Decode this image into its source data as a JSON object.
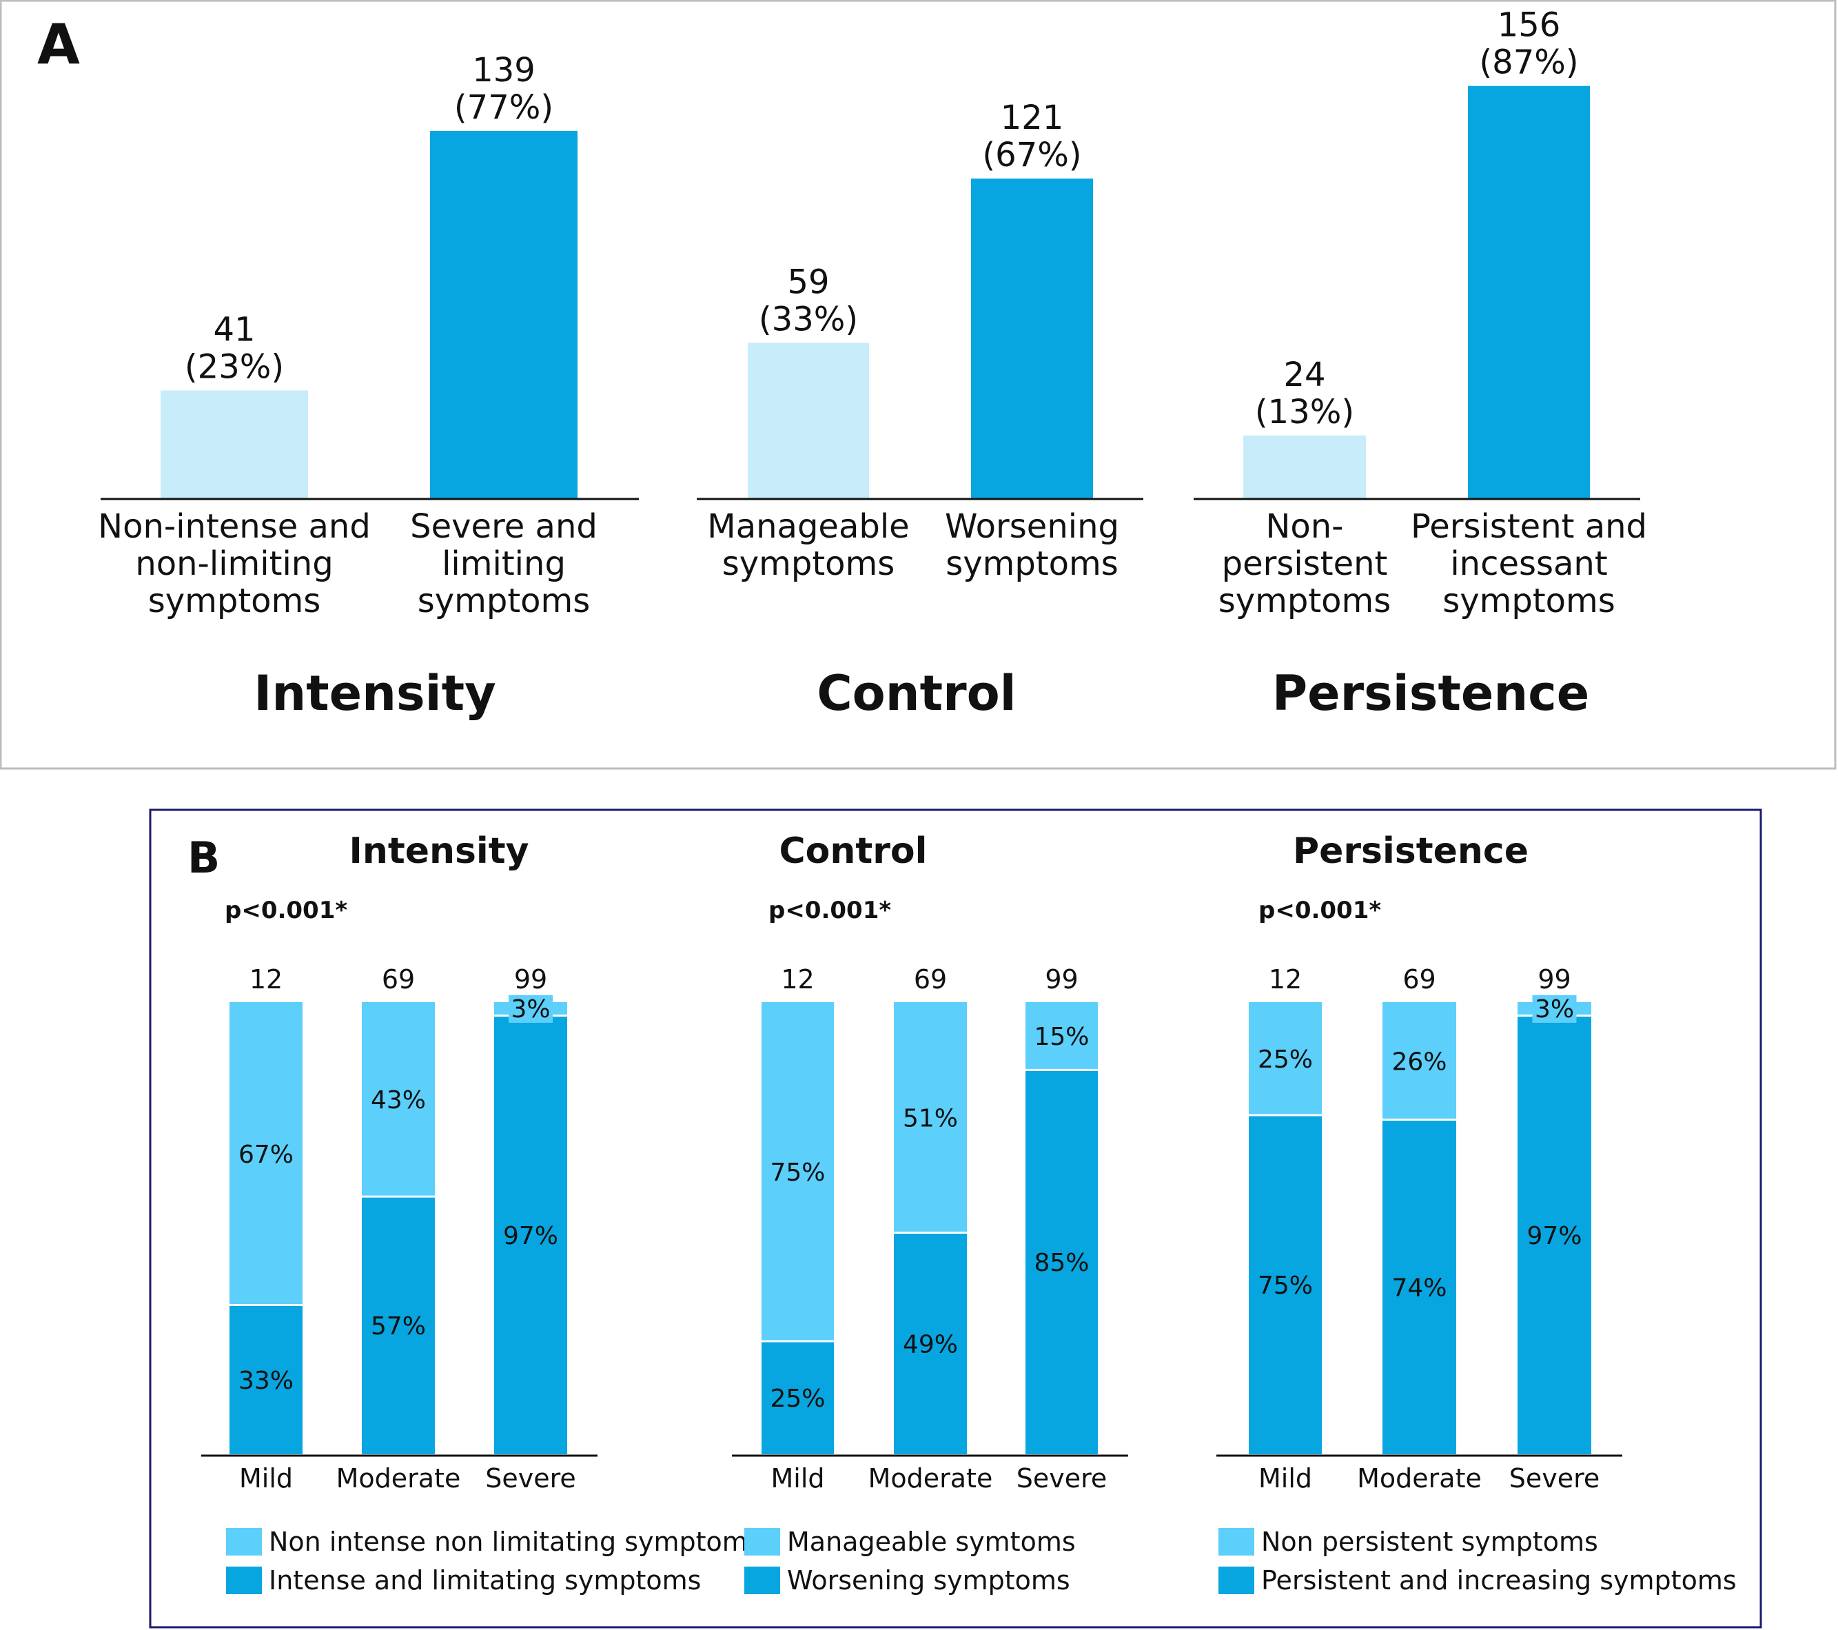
{
  "colors": {
    "panelA_light": "#c9ecfa",
    "panelA_dark": "#07a6e0",
    "panelB_light": "#5ccffb",
    "panelB_dark": "#07a6e0",
    "panelB_border": "#1a1a6e",
    "panelA_border": "#bdbdbd",
    "axis": "#111111"
  },
  "chart_data": [
    {
      "type": "bar",
      "panel": "A",
      "panel_label": "A",
      "groups": [
        {
          "title": "Intensity",
          "categories": [
            "Non-intense and non-limiting symptoms",
            "Severe and limiting symptoms"
          ],
          "category_lines": [
            [
              "Non-intense and",
              "non-limiting",
              "symptoms"
            ],
            [
              "Severe and",
              "limiting",
              "symptoms"
            ]
          ],
          "values": [
            41,
            139
          ],
          "percent_labels": [
            "(23%)",
            "(77%)"
          ]
        },
        {
          "title": "Control",
          "categories": [
            "Manageable symptoms",
            "Worsening symptoms"
          ],
          "category_lines": [
            [
              "Manageable",
              "symptoms"
            ],
            [
              "Worsening",
              "symptoms"
            ]
          ],
          "values": [
            59,
            121
          ],
          "percent_labels": [
            "(33%)",
            "(67%)"
          ]
        },
        {
          "title": "Persistence",
          "categories": [
            "Non-persistent symptoms",
            "Persistent and incessant symptoms"
          ],
          "category_lines": [
            [
              "Non-",
              "persistent",
              "symptoms"
            ],
            [
              "Persistent and",
              "incessant",
              "symptoms"
            ]
          ],
          "values": [
            24,
            156
          ],
          "percent_labels": [
            "(13%)",
            "(87%)"
          ]
        }
      ],
      "xlabel": "",
      "ylabel": "",
      "grid": false
    },
    {
      "type": "bar",
      "stacked": true,
      "panel": "B",
      "panel_label": "B",
      "categories": [
        "Mild",
        "Moderate",
        "Severe"
      ],
      "groups": [
        {
          "title": "Intensity",
          "p_value": "p<0.001*",
          "totals": [
            "12",
            "69",
            "99"
          ],
          "series": [
            {
              "name": "Intense and limitating symptoms",
              "values": [
                33,
                57,
                97
              ]
            },
            {
              "name": "Non intense non limitating symptoms",
              "values": [
                67,
                43,
                3
              ]
            }
          ]
        },
        {
          "title": "Control",
          "p_value": "p<0.001*",
          "totals": [
            "12",
            "69",
            "99"
          ],
          "series": [
            {
              "name": "Worsening symptoms",
              "values": [
                25,
                49,
                85
              ]
            },
            {
              "name": "Manageable symtoms",
              "values": [
                75,
                51,
                15
              ]
            }
          ]
        },
        {
          "title": "Persistence",
          "p_value": "p<0.001*",
          "totals": [
            "12",
            "69",
            "99"
          ],
          "series": [
            {
              "name": "Persistent and increasing symptoms",
              "values": [
                75,
                74,
                97
              ]
            },
            {
              "name": "Non persistent symptoms",
              "values": [
                25,
                26,
                3
              ]
            }
          ]
        }
      ],
      "legend": [
        [
          "Non intense non limitating symptoms",
          "Intense and limitating symptoms"
        ],
        [
          "Manageable symtoms",
          "Worsening symptoms"
        ],
        [
          "Non persistent symptoms",
          "Persistent and increasing symptoms"
        ]
      ],
      "value_suffix": "%",
      "ylim": [
        0,
        100
      ],
      "grid": false,
      "legend_position": "bottom"
    }
  ]
}
